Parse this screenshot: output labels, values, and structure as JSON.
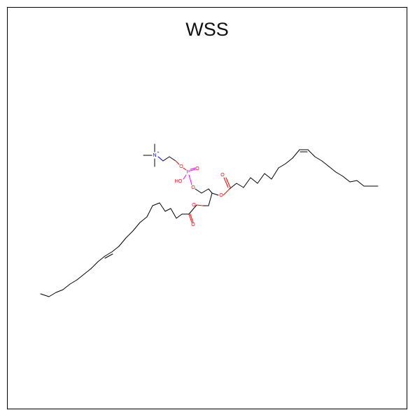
{
  "title": "WSS",
  "atoms": {
    "nitrogen": "N",
    "nitrogen_charge": "+",
    "phosphorus": "P",
    "hydroxyl": "HO",
    "ester_oxygen": "O",
    "carbonyl_oxygen": "O",
    "phosphate_oxygen": "O"
  },
  "colors": {
    "carbon_bond": "#000000",
    "oxygen": "#ff0000",
    "phosphorus": "#ff00ff",
    "nitrogen": "#0000ff"
  }
}
